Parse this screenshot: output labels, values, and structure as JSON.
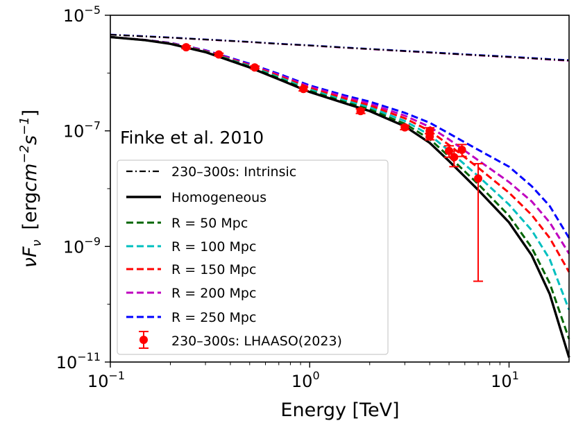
{
  "chart_data": {
    "type": "line",
    "title": "",
    "xlabel": "Energy [TeV]",
    "ylabel_parts": {
      "nu": "ν",
      "F": "F",
      "sub": "ν",
      "unit_open": "[erg",
      "cm": "cm",
      "exp1": "−2",
      "s": "s",
      "exp2": "−1",
      "unit_close": "]"
    },
    "xscale": "log",
    "yscale": "log",
    "xlim": [
      0.1,
      20
    ],
    "ylim": [
      1e-11,
      1e-05
    ],
    "x_ticks": [
      {
        "value": 0.1,
        "base": "10",
        "exp": "−1"
      },
      {
        "value": 1,
        "base": "10",
        "exp": "0"
      },
      {
        "value": 10,
        "base": "10",
        "exp": "1"
      }
    ],
    "y_ticks": [
      {
        "value": 1e-11,
        "base": "10",
        "exp": "−11"
      },
      {
        "value": 1e-09,
        "base": "10",
        "exp": "−9"
      },
      {
        "value": 1e-07,
        "base": "10",
        "exp": "−7"
      },
      {
        "value": 1e-05,
        "base": "10",
        "exp": "−5"
      }
    ],
    "annotation": "Finke et al. 2010",
    "energies": [
      0.1,
      0.15,
      0.2,
      0.3,
      0.5,
      0.7,
      1.0,
      1.5,
      2.0,
      3.0,
      4.0,
      5.0,
      7.0,
      10.0,
      13.0,
      16.0,
      20.0
    ],
    "series": [
      {
        "name": "230–300s: Intrinsic",
        "color": "#000000",
        "style": "dashdot",
        "values": [
          4.6e-06,
          4.3e-06,
          4.1e-06,
          3.8e-06,
          3.45e-06,
          3.2e-06,
          3e-06,
          2.75e-06,
          2.6e-06,
          2.4e-06,
          2.27e-06,
          2.17e-06,
          2.03e-06,
          1.9e-06,
          1.8e-06,
          1.72e-06,
          1.65e-06
        ]
      },
      {
        "name": "Homogeneous",
        "color": "#000000",
        "style": "solid",
        "values": [
          4.2e-06,
          3.7e-06,
          3.2e-06,
          2.3e-06,
          1.25e-06,
          7.8e-07,
          4.7e-07,
          3e-07,
          2.2e-07,
          1.2e-07,
          6.2e-08,
          3e-08,
          9.5e-09,
          2.6e-09,
          7e-10,
          1.5e-10,
          1.2e-11
        ]
      },
      {
        "name": "R = 50 Mpc",
        "color": "#006400",
        "style": "dashed",
        "values": [
          4.2e-06,
          3.7e-06,
          3.22e-06,
          2.33e-06,
          1.28e-06,
          8.1e-07,
          4.9e-07,
          3.15e-07,
          2.35e-07,
          1.33e-07,
          7.2e-08,
          3.6e-08,
          1.2e-08,
          3.4e-09,
          9.5e-10,
          2.3e-10,
          2.5e-11
        ]
      },
      {
        "name": "R = 100 Mpc",
        "color": "#00BFBF",
        "style": "dashed",
        "values": [
          4.2e-06,
          3.71e-06,
          3.25e-06,
          2.36e-06,
          1.32e-06,
          8.5e-07,
          5.2e-07,
          3.35e-07,
          2.55e-07,
          1.48e-07,
          8.5e-08,
          4.5e-08,
          1.65e-08,
          5.3e-09,
          1.9e-09,
          6e-10,
          8e-11
        ]
      },
      {
        "name": "R = 150 Mpc",
        "color": "#FF0000",
        "style": "dashed",
        "values": [
          4.2e-06,
          3.72e-06,
          3.28e-06,
          2.4e-06,
          1.36e-06,
          8.9e-07,
          5.5e-07,
          3.6e-07,
          2.75e-07,
          1.65e-07,
          1e-07,
          5.7e-08,
          2.3e-08,
          8.5e-09,
          3.5e-09,
          1.4e-09,
          3.6e-10
        ]
      },
      {
        "name": "R = 200 Mpc",
        "color": "#BF00BF",
        "style": "dashed",
        "values": [
          4.2e-06,
          3.73e-06,
          3.31e-06,
          2.44e-06,
          1.4e-06,
          9.3e-07,
          5.8e-07,
          3.85e-07,
          2.95e-07,
          1.83e-07,
          1.17e-07,
          7.1e-08,
          3.1e-08,
          1.3e-08,
          6e-09,
          2.6e-09,
          7.5e-10
        ]
      },
      {
        "name": "R = 250 Mpc",
        "color": "#0000FF",
        "style": "dashed",
        "values": [
          4.2e-06,
          3.74e-06,
          3.34e-06,
          2.48e-06,
          1.45e-06,
          9.7e-07,
          6.1e-07,
          4.1e-07,
          3.2e-07,
          2.05e-07,
          1.38e-07,
          9e-08,
          4.7e-08,
          2.4e-08,
          1.1e-08,
          5e-09,
          1.4e-09
        ]
      }
    ],
    "intrinsic_variants": [
      {
        "color": "#0000FF",
        "values": [
          4.65e-06,
          4.35e-06,
          4.14e-06,
          3.83e-06,
          3.48e-06,
          3.23e-06,
          3.03e-06,
          2.78e-06,
          2.63e-06,
          2.43e-06,
          2.3e-06,
          2.2e-06,
          2.06e-06,
          1.93e-06,
          1.83e-06,
          1.75e-06,
          1.68e-06
        ]
      },
      {
        "color": "#BF00BF",
        "values": [
          4.6e-06,
          4.29e-06,
          4.08e-06,
          3.78e-06,
          3.43e-06,
          3.18e-06,
          2.98e-06,
          2.73e-06,
          2.58e-06,
          2.38e-06,
          2.25e-06,
          2.15e-06,
          2.01e-06,
          1.88e-06,
          1.78e-06,
          1.7e-06,
          1.62e-06
        ]
      }
    ],
    "lhaaso_points": {
      "name": "230–300s: LHAASO(2023)",
      "color": "#FF0000",
      "points": [
        {
          "x": 0.24,
          "y": 2.8e-06,
          "ylo": 2.65e-06,
          "yhi": 2.95e-06
        },
        {
          "x": 0.35,
          "y": 2.1e-06,
          "ylo": 2e-06,
          "yhi": 2.2e-06
        },
        {
          "x": 0.53,
          "y": 1.25e-06,
          "ylo": 1.18e-06,
          "yhi": 1.32e-06
        },
        {
          "x": 0.93,
          "y": 5.3e-07,
          "ylo": 4.9e-07,
          "yhi": 5.7e-07
        },
        {
          "x": 1.8,
          "y": 2.2e-07,
          "ylo": 2e-07,
          "yhi": 2.4e-07
        },
        {
          "x": 3.0,
          "y": 1.15e-07,
          "ylo": 1.05e-07,
          "yhi": 1.25e-07
        },
        {
          "x": 4.0,
          "y": 1e-07,
          "ylo": 8.9e-08,
          "yhi": 1.13e-07
        },
        {
          "x": 4.0,
          "y": 8e-08,
          "ylo": 7e-08,
          "yhi": 9e-08
        },
        {
          "x": 5.0,
          "y": 4.5e-08,
          "ylo": 3.5e-08,
          "yhi": 5.5e-08
        },
        {
          "x": 5.3,
          "y": 3.5e-08,
          "ylo": 2.4e-08,
          "yhi": 4.5e-08
        },
        {
          "x": 5.8,
          "y": 4.7e-08,
          "ylo": 3.6e-08,
          "yhi": 5.8e-08
        },
        {
          "x": 7.0,
          "y": 1.5e-08,
          "ylo": 2.5e-10,
          "yhi": 2.7e-08
        }
      ]
    },
    "legend_position": "lower-left",
    "grid": false
  }
}
